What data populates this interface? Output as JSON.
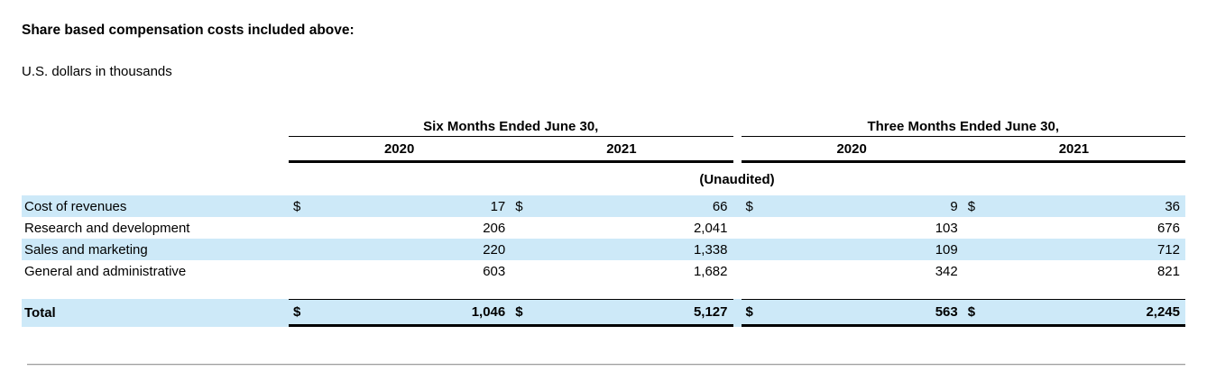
{
  "page": {
    "title": "Share based compensation costs included above:",
    "subtitle": "U.S. dollars in thousands"
  },
  "table": {
    "currency_symbol": "$",
    "unaudited_note": "(Unaudited)",
    "col_groups": [
      {
        "label": "Six Months Ended June 30,",
        "years": [
          "2020",
          "2021"
        ]
      },
      {
        "label": "Three Months Ended June 30,",
        "years": [
          "2020",
          "2021"
        ]
      }
    ],
    "rows": [
      {
        "label": "Cost of revenues",
        "dollar": true,
        "values": [
          "17",
          "66",
          "9",
          "36"
        ]
      },
      {
        "label": "Research and development",
        "dollar": false,
        "values": [
          "206",
          "2,041",
          "103",
          "676"
        ]
      },
      {
        "label": "Sales and marketing",
        "dollar": false,
        "values": [
          "220",
          "1,338",
          "109",
          "712"
        ]
      },
      {
        "label": "General and administrative",
        "dollar": false,
        "values": [
          "603",
          "1,682",
          "342",
          "821"
        ]
      }
    ],
    "total_row": {
      "label": "Total",
      "dollar": true,
      "values": [
        "1,046",
        "5,127",
        "563",
        "2,245"
      ]
    }
  },
  "colors": {
    "row_highlight": "#cde9f8",
    "table_border": "#000000",
    "divider": "#9e9e9e"
  }
}
